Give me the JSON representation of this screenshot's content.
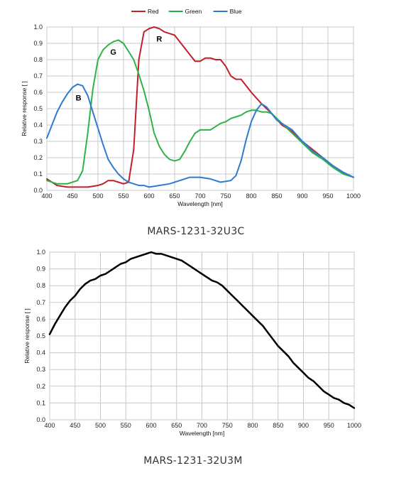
{
  "captions": [
    "MARS-1231-32U3C",
    "MARS-1231-32U3M"
  ],
  "chart_data": [
    {
      "type": "line",
      "xlabel": "Wavelength [nm]",
      "ylabel": "Relative response [ ]",
      "xlim": [
        400,
        1000
      ],
      "ylim": [
        0,
        1.0
      ],
      "xticks": [
        400,
        450,
        500,
        550,
        600,
        650,
        700,
        750,
        800,
        850,
        900,
        950,
        1000
      ],
      "yticks": [
        0.0,
        0.1,
        0.2,
        0.3,
        0.4,
        0.5,
        0.6,
        0.7,
        0.8,
        0.9,
        1.0
      ],
      "grid": true,
      "legend": "top-center",
      "series": [
        {
          "name": "Red",
          "color": "#c0202a",
          "x": [
            400,
            420,
            440,
            460,
            480,
            500,
            510,
            520,
            530,
            540,
            550,
            560,
            570,
            580,
            590,
            600,
            610,
            620,
            630,
            640,
            650,
            660,
            670,
            680,
            690,
            700,
            710,
            720,
            730,
            740,
            750,
            760,
            770,
            780,
            790,
            800,
            820,
            840,
            860,
            880,
            900,
            920,
            940,
            960,
            980,
            1000
          ],
          "y": [
            0.07,
            0.03,
            0.02,
            0.02,
            0.02,
            0.03,
            0.04,
            0.06,
            0.06,
            0.05,
            0.04,
            0.05,
            0.25,
            0.8,
            0.97,
            0.99,
            1.0,
            0.99,
            0.97,
            0.96,
            0.95,
            0.91,
            0.87,
            0.83,
            0.79,
            0.79,
            0.81,
            0.81,
            0.8,
            0.8,
            0.76,
            0.7,
            0.68,
            0.68,
            0.64,
            0.6,
            0.53,
            0.47,
            0.4,
            0.36,
            0.3,
            0.25,
            0.2,
            0.15,
            0.11,
            0.08
          ]
        },
        {
          "name": "Green",
          "color": "#2db34a",
          "x": [
            400,
            420,
            440,
            460,
            470,
            480,
            490,
            500,
            510,
            520,
            530,
            540,
            550,
            560,
            570,
            580,
            590,
            600,
            610,
            620,
            630,
            640,
            650,
            660,
            670,
            680,
            690,
            700,
            710,
            720,
            730,
            740,
            750,
            760,
            770,
            780,
            790,
            800,
            810,
            820,
            830,
            840,
            860,
            880,
            900,
            920,
            940,
            960,
            980,
            1000
          ],
          "y": [
            0.06,
            0.04,
            0.04,
            0.06,
            0.12,
            0.35,
            0.62,
            0.8,
            0.86,
            0.89,
            0.91,
            0.92,
            0.9,
            0.85,
            0.8,
            0.71,
            0.61,
            0.49,
            0.35,
            0.27,
            0.22,
            0.19,
            0.18,
            0.19,
            0.24,
            0.3,
            0.35,
            0.37,
            0.37,
            0.37,
            0.39,
            0.41,
            0.42,
            0.44,
            0.45,
            0.46,
            0.48,
            0.49,
            0.49,
            0.48,
            0.48,
            0.47,
            0.41,
            0.35,
            0.29,
            0.23,
            0.19,
            0.14,
            0.1,
            0.08
          ]
        },
        {
          "name": "Blue",
          "color": "#2f7bd0",
          "x": [
            400,
            410,
            420,
            430,
            440,
            450,
            460,
            470,
            480,
            490,
            500,
            510,
            520,
            530,
            540,
            550,
            560,
            570,
            580,
            590,
            600,
            620,
            640,
            660,
            680,
            700,
            720,
            740,
            760,
            770,
            780,
            790,
            800,
            810,
            820,
            830,
            840,
            850,
            860,
            880,
            900,
            920,
            940,
            960,
            980,
            1000
          ],
          "y": [
            0.32,
            0.4,
            0.48,
            0.54,
            0.59,
            0.63,
            0.65,
            0.64,
            0.58,
            0.48,
            0.38,
            0.28,
            0.19,
            0.14,
            0.1,
            0.07,
            0.05,
            0.04,
            0.03,
            0.03,
            0.02,
            0.03,
            0.04,
            0.06,
            0.08,
            0.08,
            0.07,
            0.05,
            0.06,
            0.09,
            0.18,
            0.31,
            0.42,
            0.49,
            0.53,
            0.51,
            0.47,
            0.43,
            0.41,
            0.37,
            0.3,
            0.24,
            0.2,
            0.15,
            0.11,
            0.08
          ]
        }
      ],
      "annotations": [
        {
          "text": "R",
          "x": 620,
          "y": 0.91
        },
        {
          "text": "G",
          "x": 530,
          "y": 0.83
        },
        {
          "text": "B",
          "x": 462,
          "y": 0.55
        }
      ]
    },
    {
      "type": "line",
      "xlabel": "Wavelength [nm]",
      "ylabel": "Relative response [ ]",
      "xlim": [
        400,
        1000
      ],
      "ylim": [
        0,
        1.0
      ],
      "xticks": [
        400,
        450,
        500,
        550,
        600,
        650,
        700,
        750,
        800,
        850,
        900,
        950,
        1000
      ],
      "yticks": [
        0.0,
        0.1,
        0.2,
        0.3,
        0.4,
        0.5,
        0.6,
        0.7,
        0.8,
        0.9,
        1.0
      ],
      "grid": true,
      "series": [
        {
          "color": "#000000",
          "x": [
            400,
            410,
            420,
            430,
            440,
            450,
            460,
            470,
            480,
            490,
            500,
            510,
            520,
            530,
            540,
            550,
            560,
            570,
            580,
            590,
            600,
            610,
            620,
            630,
            640,
            650,
            660,
            670,
            680,
            690,
            700,
            710,
            720,
            730,
            740,
            750,
            760,
            770,
            780,
            790,
            800,
            810,
            820,
            830,
            840,
            850,
            860,
            870,
            880,
            890,
            900,
            910,
            920,
            930,
            940,
            950,
            960,
            970,
            980,
            990,
            1000
          ],
          "y": [
            0.51,
            0.57,
            0.62,
            0.67,
            0.71,
            0.74,
            0.78,
            0.81,
            0.83,
            0.84,
            0.86,
            0.87,
            0.89,
            0.91,
            0.93,
            0.94,
            0.96,
            0.97,
            0.98,
            0.99,
            1.0,
            0.99,
            0.99,
            0.98,
            0.97,
            0.96,
            0.95,
            0.93,
            0.91,
            0.89,
            0.87,
            0.85,
            0.83,
            0.82,
            0.8,
            0.77,
            0.74,
            0.71,
            0.68,
            0.65,
            0.62,
            0.59,
            0.56,
            0.52,
            0.48,
            0.44,
            0.41,
            0.38,
            0.34,
            0.31,
            0.28,
            0.25,
            0.23,
            0.2,
            0.17,
            0.15,
            0.13,
            0.12,
            0.1,
            0.09,
            0.07
          ]
        }
      ]
    }
  ]
}
